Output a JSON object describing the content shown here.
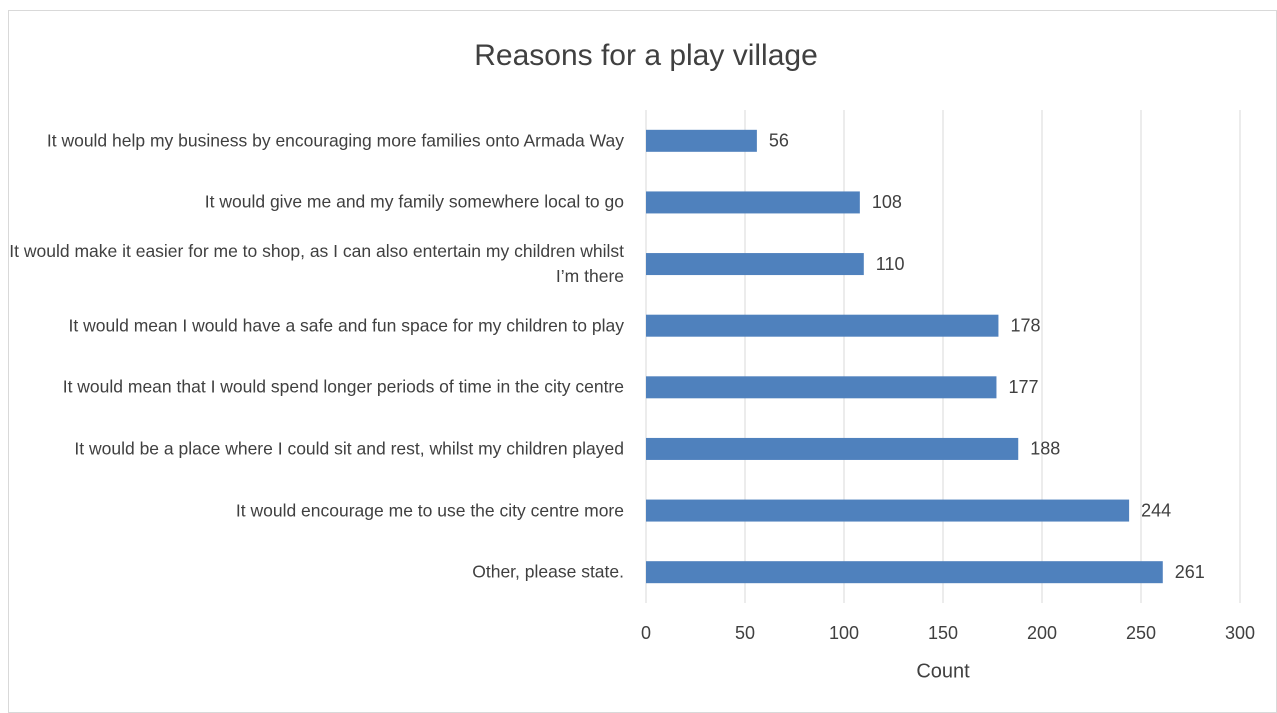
{
  "chart_data": {
    "type": "barh",
    "title": "Reasons for a play village",
    "x_label": "Count",
    "categories": [
      "It would help my business by encouraging more families onto Armada Way",
      "It would give me and my family somewhere local to go",
      "It would make it easier for me to shop, as I can also entertain my children whilst I’m there",
      "It would mean I would have a safe and fun space for my children to play",
      "It would mean that I would spend longer periods of time in the city centre",
      "It would be a place where I could sit and rest, whilst my children played",
      "It would encourage me to use the city centre more",
      "Other, please state."
    ],
    "values": [
      56,
      108,
      110,
      178,
      177,
      188,
      244,
      261
    ],
    "color": "#4f81bd",
    "xlim": [
      0,
      300
    ],
    "xticks": [
      0,
      50,
      100,
      150,
      200,
      250,
      300
    ],
    "grid": true
  }
}
